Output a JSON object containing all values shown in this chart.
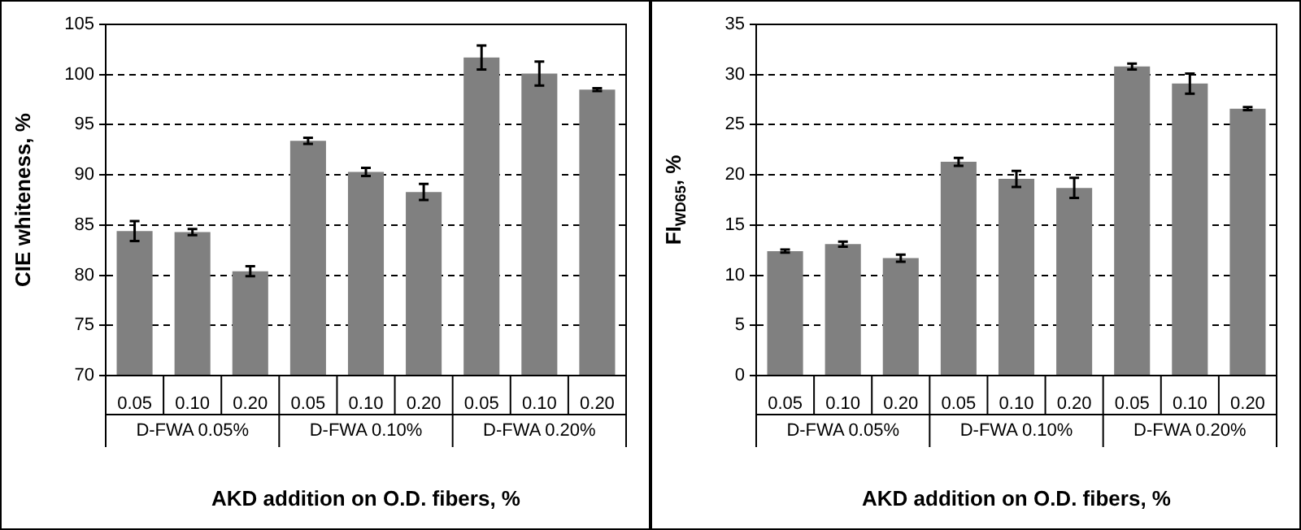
{
  "chart_data": [
    {
      "type": "bar",
      "ylabel": "CIE whiteness, %",
      "xlabel": "AKD addition on O.D. fibers, %",
      "categories": [
        "0.05",
        "0.10",
        "0.20",
        "0.05",
        "0.10",
        "0.20",
        "0.05",
        "0.10",
        "0.20"
      ],
      "color": "#808080",
      "values": [
        84.4,
        84.3,
        80.4,
        93.4,
        90.3,
        88.3,
        101.7,
        100.1,
        98.5
      ],
      "errors": [
        1.0,
        0.3,
        0.5,
        0.3,
        0.4,
        0.8,
        1.2,
        1.2,
        0.15
      ],
      "ylim": [
        70,
        105
      ],
      "yticks": [
        70,
        75,
        80,
        85,
        90,
        95,
        100,
        105
      ],
      "grid": "y",
      "legend": false,
      "annotations": [
        "D-FWA 0.05%",
        "D-FWA 0.10%",
        "D-FWA 0.20%"
      ]
    },
    {
      "type": "bar",
      "ylabel": "FI$_{WD65}$, %",
      "xlabel": "AKD addition on O.D. fibers, %",
      "categories": [
        "0.05",
        "0.10",
        "0.20",
        "0.05",
        "0.10",
        "0.20",
        "0.05",
        "0.10",
        "0.20"
      ],
      "color": "#808080",
      "values": [
        12.4,
        13.1,
        11.7,
        21.3,
        19.6,
        18.7,
        30.8,
        29.1,
        26.6
      ],
      "errors": [
        0.15,
        0.25,
        0.35,
        0.4,
        0.8,
        1.0,
        0.3,
        1.0,
        0.15
      ],
      "ylim": [
        0,
        35
      ],
      "yticks": [
        0,
        5,
        10,
        15,
        20,
        25,
        30,
        35
      ],
      "grid": "y",
      "legend": false,
      "annotations": [
        "D-FWA 0.05%",
        "D-FWA 0.10%",
        "D-FWA 0.20%"
      ]
    }
  ]
}
